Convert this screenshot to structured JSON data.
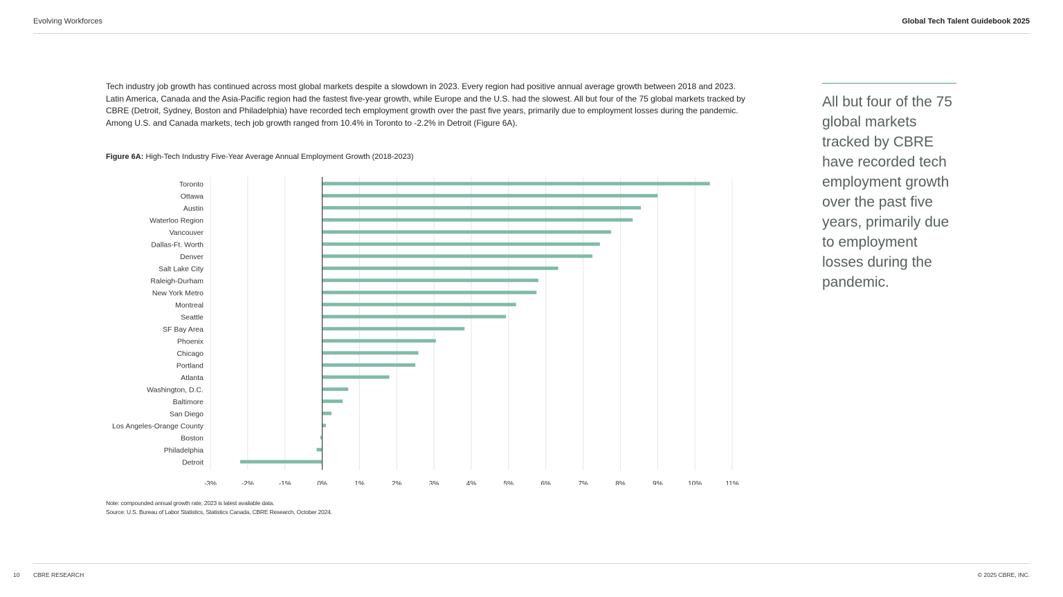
{
  "header": {
    "section": "Evolving Workforces",
    "publication": "Global Tech Talent Guidebook 2025"
  },
  "body_text": "Tech industry job growth has continued across most global markets despite a slowdown in 2023. Every region had positive annual average growth between 2018 and 2023. Latin America, Canada and the Asia-Pacific region had the fastest five-year growth, while Europe and the U.S. had the slowest. All but four of the 75 global markets tracked by CBRE (Detroit, Sydney, Boston and Philadelphia) have recorded tech employment growth over the past five years, primarily due to employment losses during the pandemic. Among U.S. and Canada markets, tech job growth ranged from 10.4% in Toronto to -2.2% in Detroit (Figure 6A).",
  "figure": {
    "label": "Figure 6A:",
    "title": "High-Tech Industry Five-Year Average Annual Employment Growth (2018-2023)"
  },
  "chart_data": {
    "type": "bar",
    "orientation": "horizontal",
    "categories": [
      "Toronto",
      "Ottawa",
      "Austin",
      "Waterloo Region",
      "Vancouver",
      "Dallas-Ft. Worth",
      "Denver",
      "Salt Lake City",
      "Raleigh-Durham",
      "New York Metro",
      "Montreal",
      "Seattle",
      "SF Bay Area",
      "Phoenix",
      "Chicago",
      "Portland",
      "Atlanta",
      "Washington, D.C.",
      "Baltimore",
      "San Diego",
      "Los Angeles-Orange County",
      "Boston",
      "Philadelphia",
      "Detroit"
    ],
    "values": [
      10.4,
      9.0,
      8.55,
      8.33,
      7.75,
      7.45,
      7.25,
      6.33,
      5.8,
      5.75,
      5.2,
      4.93,
      3.82,
      3.05,
      2.58,
      2.5,
      1.8,
      0.7,
      0.55,
      0.25,
      0.1,
      -0.05,
      -0.15,
      -2.2
    ],
    "xlim": [
      -3,
      11
    ],
    "xticks": [
      "-3%",
      "-2%",
      "-1%",
      "0%",
      "1%",
      "2%",
      "3%",
      "4%",
      "5%",
      "6%",
      "7%",
      "8%",
      "9%",
      "10%",
      "11%"
    ],
    "unit": "%",
    "grid": "vertical",
    "color": "#80bba8"
  },
  "notes": {
    "note": "Note: compounded annual growth rate, 2023 is latest available data.",
    "source": "Source: U.S. Bureau of Labor Statistics, Statistics Canada, CBRE Research, October 2024."
  },
  "pull_quote": "All but four of the 75 global markets tracked by CBRE have recorded tech employment growth over the past five years, primarily due to employment losses during the pandemic.",
  "footer": {
    "page_number": "10",
    "brand": "CBRE RESEARCH",
    "copyright": "© 2025 CBRE, INC."
  },
  "colors": {
    "accent": "#3fa77e",
    "bar": "#80bba8"
  }
}
